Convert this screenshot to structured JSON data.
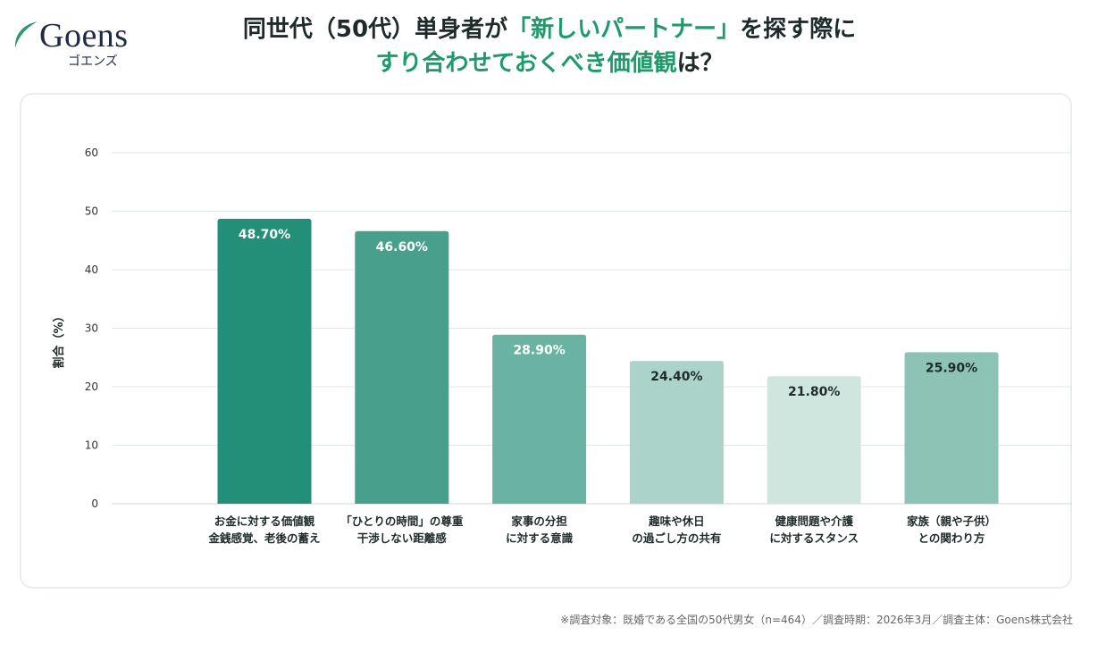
{
  "logo": {
    "word": "Goens",
    "kana": "ゴエンズ"
  },
  "title": {
    "line1_dark": "同世代（50代）単身者が",
    "line1_green": "「新しいパートナー」",
    "line1_dark2": "を探す際に",
    "line2_green": "すり合わせておくべき価値観",
    "line2_dark": "は？"
  },
  "colors": {
    "accent": "#1f9a6a",
    "grid": "#dfe7e5"
  },
  "chart_data": {
    "type": "bar",
    "ylabel": "割合（%）",
    "ylim": [
      0,
      60
    ],
    "yticks": [
      "0",
      "10",
      "20",
      "30",
      "40",
      "50",
      "60"
    ],
    "grid": true,
    "categories": [
      [
        "お金に対する価値観",
        "金銭感覚、老後の蓄え"
      ],
      [
        "「ひとりの時間」の尊重",
        "干渉しない距離感"
      ],
      [
        "家事の分担",
        "に対する意識"
      ],
      [
        "趣味や休日",
        "の過ごし方の共有"
      ],
      [
        "健康問題や介護",
        "に対するスタンス"
      ],
      [
        "家族（親や子供）",
        "との関わり方"
      ]
    ],
    "values": [
      48.7,
      46.6,
      28.9,
      24.4,
      21.8,
      25.9
    ],
    "labels": [
      "48.70%",
      "46.60%",
      "28.90%",
      "24.40%",
      "21.80%",
      "25.90%"
    ],
    "bar_colors": [
      "#238f79",
      "#48a08c",
      "#6ab3a2",
      "#acd3c9",
      "#cfe6df",
      "#8cc3b4"
    ],
    "label_colors": [
      "#ffffff",
      "#ffffff",
      "#ffffff",
      "#1f2a2a",
      "#1f2a2a",
      "#1f2a2a"
    ]
  },
  "footnote": "※調査対象：既婚である全国の50代男女（n=464）／調査時期：2026年3月／調査主体：Goens株式会社"
}
